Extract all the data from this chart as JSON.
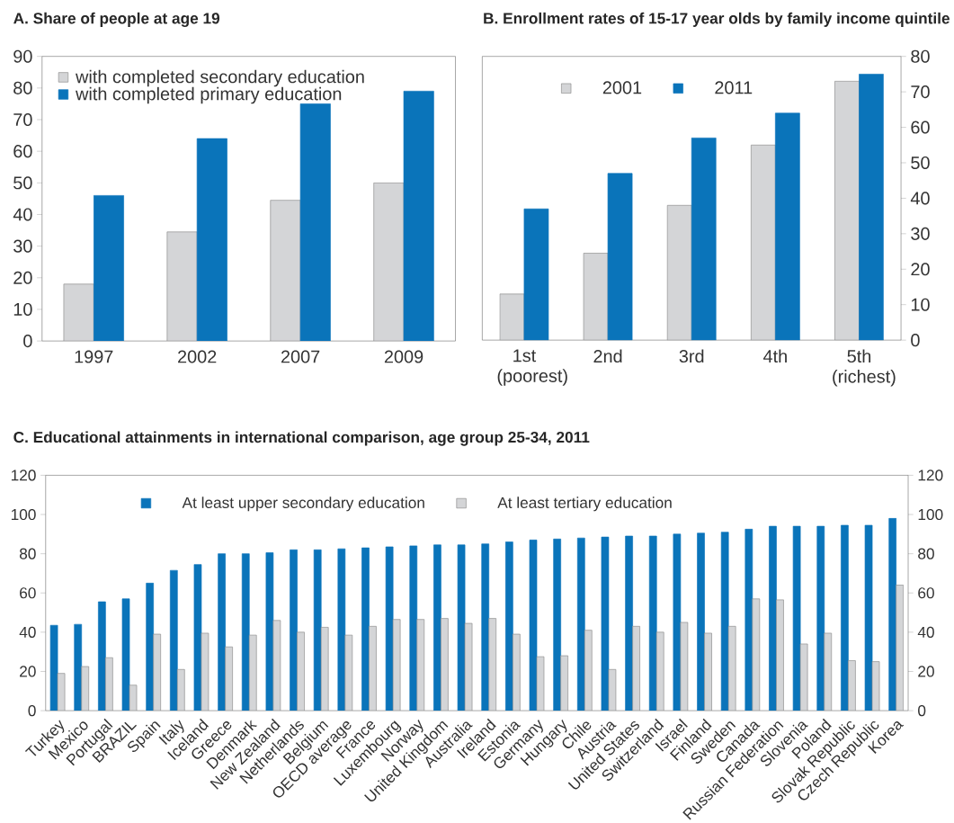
{
  "chart_data": [
    {
      "type": "bar",
      "title": "A. Share of people at age 19",
      "categories": [
        "1997",
        "2002",
        "2007",
        "2009"
      ],
      "series": [
        {
          "name": "with completed secondary education",
          "color": "#d4d5d7",
          "values": [
            18,
            34.5,
            44.5,
            50
          ]
        },
        {
          "name": "with completed primary education",
          "color": "#0a74ba",
          "values": [
            46,
            64,
            75,
            79
          ]
        }
      ],
      "ylim": [
        0,
        90
      ],
      "yticks": [
        0,
        10,
        20,
        30,
        40,
        50,
        60,
        70,
        80,
        90
      ],
      "legend": "top left",
      "grid": false
    },
    {
      "type": "bar",
      "title": "B. Enrollment rates of 15-17 year olds by family income quintile",
      "categories": [
        "1st (poorest)",
        "2nd",
        "3rd",
        "4th",
        "5th (richest)"
      ],
      "series": [
        {
          "name": "2001",
          "color": "#d4d5d7",
          "axis": "y2",
          "values": [
            13,
            24.5,
            38,
            55,
            73
          ]
        },
        {
          "name": "2011",
          "color": "#0a74ba",
          "axis": "y2",
          "values": [
            37,
            47,
            57,
            64,
            75
          ]
        }
      ],
      "y2lim": [
        0,
        80
      ],
      "y2ticks": [
        0,
        10,
        20,
        30,
        40,
        50,
        60,
        70,
        80
      ],
      "legend": "top",
      "grid": false
    },
    {
      "type": "bar",
      "title": "C. Educational attainments in international comparison, age group 25-34, 2011",
      "categories": [
        "Turkey",
        "Mexico",
        "Portugal",
        "BRAZIL",
        "Spain",
        "Italy",
        "Iceland",
        "Greece",
        "Denmark",
        "New Zealand",
        "Netherlands",
        "Belgium",
        "OECD average",
        "France",
        "Luxembourg",
        "Norway",
        "United Kingdom",
        "Australia",
        "Ireland",
        "Estonia",
        "Germany",
        "Hungary",
        "Chile",
        "Austria",
        "United States",
        "Switzerland",
        "Israel",
        "Finland",
        "Sweden",
        "Canada",
        "Russian Federation",
        "Slovenia",
        "Poland",
        "Slovak Republic",
        "Czech Republic",
        "Korea"
      ],
      "series": [
        {
          "name": "At least upper secondary education",
          "color": "#0a74ba",
          "values": [
            43.5,
            44,
            55.5,
            57,
            65,
            71.5,
            74.5,
            80,
            80,
            80.5,
            82,
            82,
            82.5,
            83,
            83.5,
            84,
            84.5,
            84.5,
            85,
            86,
            87,
            87.5,
            88,
            88.5,
            89,
            89,
            90,
            90.5,
            91,
            92.5,
            94,
            94,
            94,
            94.5,
            94.5,
            98
          ]
        },
        {
          "name": "At least tertiary education",
          "color": "#d4d5d7",
          "values": [
            19,
            22.5,
            27,
            13,
            39,
            21,
            39.5,
            32.5,
            38.5,
            46,
            40,
            42.5,
            38.5,
            43,
            46.5,
            46.5,
            47,
            44.5,
            47,
            39,
            27.5,
            28,
            41,
            21,
            43,
            40,
            45,
            39.5,
            43,
            57,
            56.5,
            34,
            39.5,
            25.5,
            25,
            64
          ]
        }
      ],
      "ylim": [
        0,
        120
      ],
      "yticks": [
        0,
        20,
        40,
        60,
        80,
        100,
        120
      ],
      "y2lim": [
        0,
        120
      ],
      "y2ticks": [
        0,
        20,
        40,
        60,
        80,
        100,
        120
      ],
      "legend": "top",
      "grid": false
    }
  ]
}
